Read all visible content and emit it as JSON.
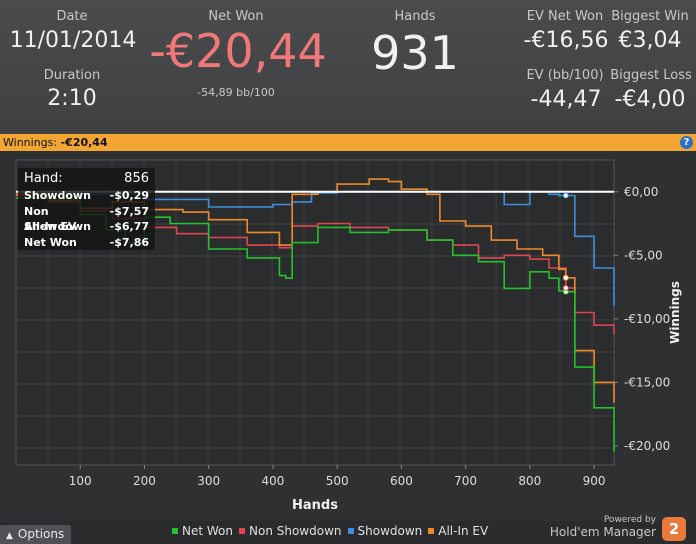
{
  "summary": {
    "date_label": "Date",
    "date_value": "11/01/2014",
    "duration_label": "Duration",
    "duration_value": "2:10",
    "net_won_label": "Net Won",
    "net_won_value": "-€20,44",
    "net_won_sub": "-54,89 bb/100",
    "hands_label": "Hands",
    "hands_value": "931",
    "ev_net_won_label": "EV Net Won",
    "ev_net_won_value": "-€16,56",
    "biggest_win_label": "Biggest Win",
    "biggest_win_value": "€3,04",
    "ev_bb_label": "EV (bb/100)",
    "ev_bb_value": "-44,47",
    "biggest_loss_label": "Biggest Loss",
    "biggest_loss_value": "-€4,00"
  },
  "winnings_bar": {
    "label": "Winnings:",
    "value": "-€20,44",
    "help": "?"
  },
  "tooltip": {
    "hand_label": "Hand:",
    "hand_value": "856",
    "rows": [
      {
        "label": "Showdown",
        "value": "-$0,29"
      },
      {
        "label": "Non Showdown",
        "value": "-$7,57"
      },
      {
        "label": "All-In EV",
        "value": "-$6,77"
      },
      {
        "label": "Net Won",
        "value": "-$7,86"
      }
    ]
  },
  "bottom": {
    "options_label": "Options",
    "powered_by": "Powered by",
    "brand": "Hold'em Manager",
    "brand_badge": "2"
  },
  "colors": {
    "net_won": "#22c22b",
    "non_showdown": "#e0454f",
    "showdown": "#3e8fe0",
    "all_in_ev": "#ee8a2c",
    "accent": "#f3a531",
    "net_won_big": "#f07878"
  },
  "chart_data": {
    "type": "line",
    "xlabel": "Hands",
    "ylabel": "Winnings",
    "xlim": [
      0,
      931
    ],
    "ylim": [
      -21.5,
      2.5
    ],
    "x_ticks": [
      100,
      200,
      300,
      400,
      500,
      600,
      700,
      800,
      900
    ],
    "y_ticks": [
      0,
      -5,
      -10,
      -15,
      -20
    ],
    "y_tick_labels": [
      "€0,00",
      "-€5,00",
      "-€10,00",
      "-€15,00",
      "-€20,00"
    ],
    "grid": true,
    "legend": "bottom",
    "zero_line": true,
    "series": [
      {
        "name": "Net Won",
        "color": "#22c22b",
        "x": [
          0,
          50,
          100,
          140,
          170,
          200,
          240,
          300,
          360,
          410,
          420,
          430,
          470,
          520,
          580,
          640,
          680,
          720,
          760,
          800,
          830,
          845,
          856,
          870,
          900,
          931
        ],
        "y": [
          -0.5,
          -0.6,
          -1.8,
          -3.0,
          -4.0,
          -2.0,
          -2.5,
          -4.5,
          -5.2,
          -6.6,
          -6.8,
          -4.0,
          -2.8,
          -3.2,
          -3.0,
          -3.8,
          -5.0,
          -5.5,
          -7.6,
          -6.3,
          -6.8,
          -7.8,
          -7.86,
          -13.8,
          -17.0,
          -20.44
        ]
      },
      {
        "name": "Non Showdown",
        "color": "#e0454f",
        "x": [
          0,
          50,
          100,
          150,
          200,
          250,
          300,
          360,
          410,
          430,
          470,
          520,
          580,
          640,
          680,
          720,
          760,
          800,
          830,
          856,
          870,
          900,
          931
        ],
        "y": [
          -0.3,
          -0.8,
          -1.5,
          -2.1,
          -2.8,
          -3.3,
          -3.6,
          -4.2,
          -4.4,
          -2.7,
          -2.5,
          -2.8,
          -3.0,
          -3.8,
          -4.2,
          -5.2,
          -5.0,
          -5.3,
          -6.0,
          -7.57,
          -9.5,
          -10.5,
          -11.2
        ]
      },
      {
        "name": "Showdown",
        "color": "#3e8fe0",
        "x": [
          0,
          100,
          200,
          300,
          400,
          430,
          460,
          500,
          550,
          600,
          650,
          700,
          740,
          760,
          800,
          830,
          845,
          856,
          870,
          900,
          931
        ],
        "y": [
          0.0,
          -0.2,
          -0.6,
          -1.2,
          -1.0,
          -0.8,
          -0.1,
          0.0,
          0.0,
          0.0,
          0.0,
          0.0,
          0.0,
          -1.0,
          0.0,
          -0.2,
          -0.3,
          -0.29,
          -3.5,
          -6.0,
          -9.0
        ]
      },
      {
        "name": "All-In EV",
        "color": "#ee8a2c",
        "x": [
          0,
          50,
          100,
          150,
          200,
          260,
          300,
          360,
          410,
          430,
          470,
          500,
          550,
          580,
          600,
          640,
          660,
          700,
          740,
          780,
          820,
          845,
          856,
          870,
          900,
          931
        ],
        "y": [
          -0.2,
          -0.7,
          -1.3,
          -0.8,
          -1.4,
          -1.6,
          -2.2,
          -3.2,
          -4.2,
          -0.2,
          0.0,
          0.6,
          1.0,
          0.8,
          0.2,
          -0.2,
          -2.3,
          -2.7,
          -3.8,
          -4.5,
          -5.0,
          -6.1,
          -6.77,
          -12.5,
          -15.0,
          -16.6
        ]
      }
    ]
  }
}
